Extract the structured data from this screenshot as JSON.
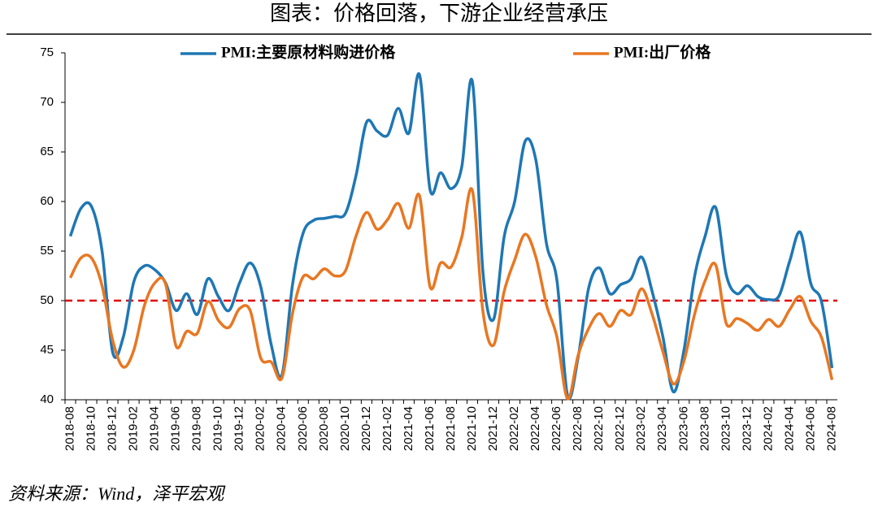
{
  "chart_data": {
    "type": "line",
    "title": "图表：价格回落，下游企业经营承压",
    "source": "资料来源：Wind，泽平宏观",
    "categories": [
      "2018-08",
      null,
      "2018-10",
      null,
      "2018-12",
      null,
      "2019-02",
      null,
      "2019-04",
      null,
      "2019-06",
      null,
      "2019-08",
      null,
      "2019-10",
      null,
      "2019-12",
      null,
      "2020-02",
      null,
      "2020-04",
      null,
      "2020-06",
      null,
      "2020-08",
      null,
      "2020-10",
      null,
      "2020-12",
      null,
      "2021-02",
      null,
      "2021-04",
      null,
      "2021-06",
      null,
      "2021-08",
      null,
      "2021-10",
      null,
      "2021-12",
      null,
      "2022-02",
      null,
      "2022-04",
      null,
      "2022-06",
      null,
      "2022-08",
      null,
      "2022-10",
      null,
      "2022-12",
      null,
      "2023-02",
      null,
      "2023-04",
      null,
      "2023-06",
      null,
      "2023-08",
      null,
      "2023-10",
      null,
      "2023-12",
      null,
      "2024-02",
      null,
      "2024-04",
      null,
      "2024-06",
      null,
      "2024-08"
    ],
    "series": [
      {
        "name": "PMI:主要原材料购进价格",
        "color": "#1f77b4",
        "values": [
          56.5,
          59.3,
          59.5,
          55,
          44.8,
          46.3,
          51.9,
          53.5,
          53.1,
          51.8,
          49.0,
          50.7,
          48.6,
          52.2,
          50.4,
          49.0,
          51.8,
          53.8,
          51.4,
          45.5,
          42.5,
          51.6,
          56.8,
          58.1,
          58.3,
          58.5,
          58.8,
          62.6,
          68.0,
          67.1,
          66.7,
          69.4,
          66.9,
          72.8,
          61.2,
          62.9,
          61.3,
          63.5,
          72.1,
          52.9,
          48.1,
          56.4,
          60.0,
          66.1,
          64.2,
          55.8,
          52.0,
          40.4,
          44.3,
          51.3,
          53.3,
          50.7,
          51.6,
          52.2,
          54.4,
          50.9,
          46.4,
          40.8,
          45.0,
          52.4,
          56.5,
          59.4,
          52.6,
          50.7,
          51.5,
          50.4,
          50.1,
          50.5,
          54.0,
          56.9,
          51.7,
          49.9,
          43.2
        ]
      },
      {
        "name": "PMI:出厂价格",
        "color": "#e87722",
        "values": [
          52.3,
          54.3,
          54.3,
          51.5,
          46.0,
          43.3,
          45.0,
          49.5,
          51.8,
          51.7,
          45.4,
          46.9,
          46.7,
          49.9,
          48.0,
          47.3,
          49.2,
          49.0,
          44.2,
          43.8,
          42.2,
          48.7,
          52.4,
          52.2,
          53.2,
          52.5,
          53.0,
          56.5,
          58.9,
          57.2,
          58.2,
          59.8,
          57.3,
          60.6,
          51.4,
          53.8,
          53.4,
          56.4,
          61.1,
          48.9,
          45.5,
          50.9,
          54.1,
          56.7,
          54.4,
          49.6,
          46.3,
          40.1,
          44.5,
          47.2,
          48.7,
          47.4,
          49.0,
          48.6,
          51.2,
          48.6,
          44.9,
          41.6,
          43.9,
          48.6,
          52.0,
          53.6,
          47.7,
          48.2,
          47.7,
          47.0,
          48.1,
          47.4,
          49.1,
          50.4,
          47.9,
          46.3,
          42.0
        ]
      }
    ],
    "ylim": [
      40,
      75
    ],
    "yticks": [
      40,
      45,
      50,
      55,
      60,
      65,
      70,
      75
    ],
    "reference_line": {
      "value": 50,
      "color": "#e00000"
    },
    "legend": "top"
  }
}
